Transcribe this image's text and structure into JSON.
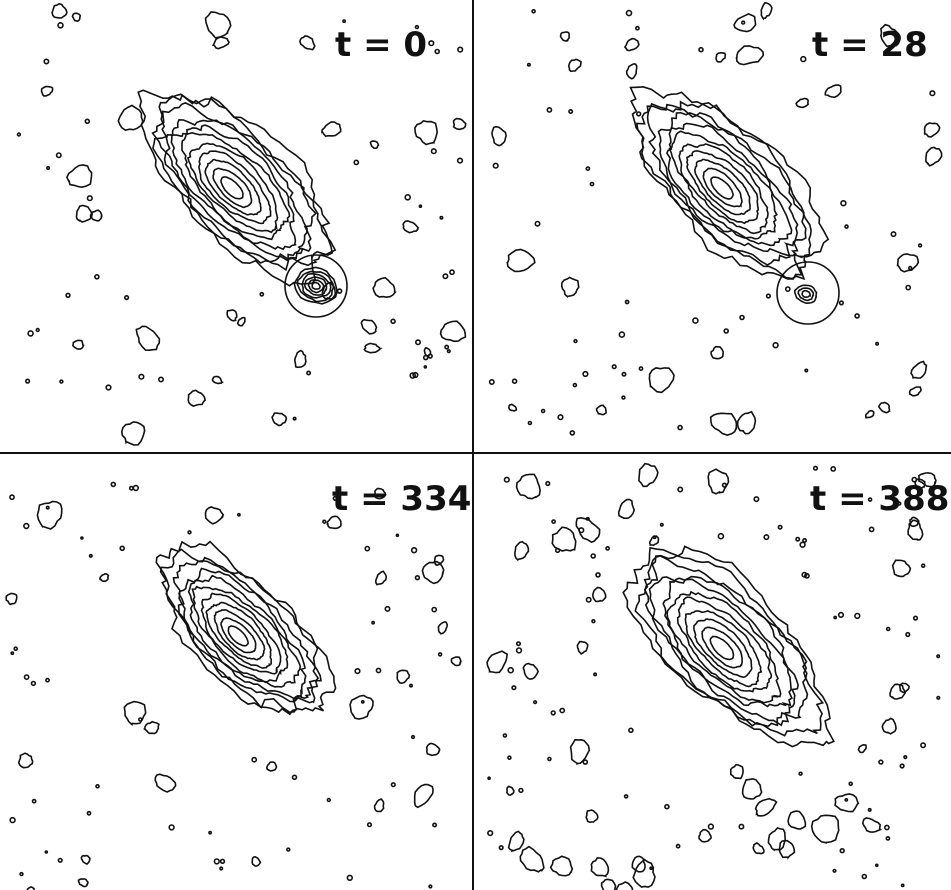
{
  "panels": [
    {
      "label": "t = 0"
    },
    {
      "label": "t = 28"
    },
    {
      "label": "t = 334"
    },
    {
      "label": "t = 388"
    }
  ]
}
